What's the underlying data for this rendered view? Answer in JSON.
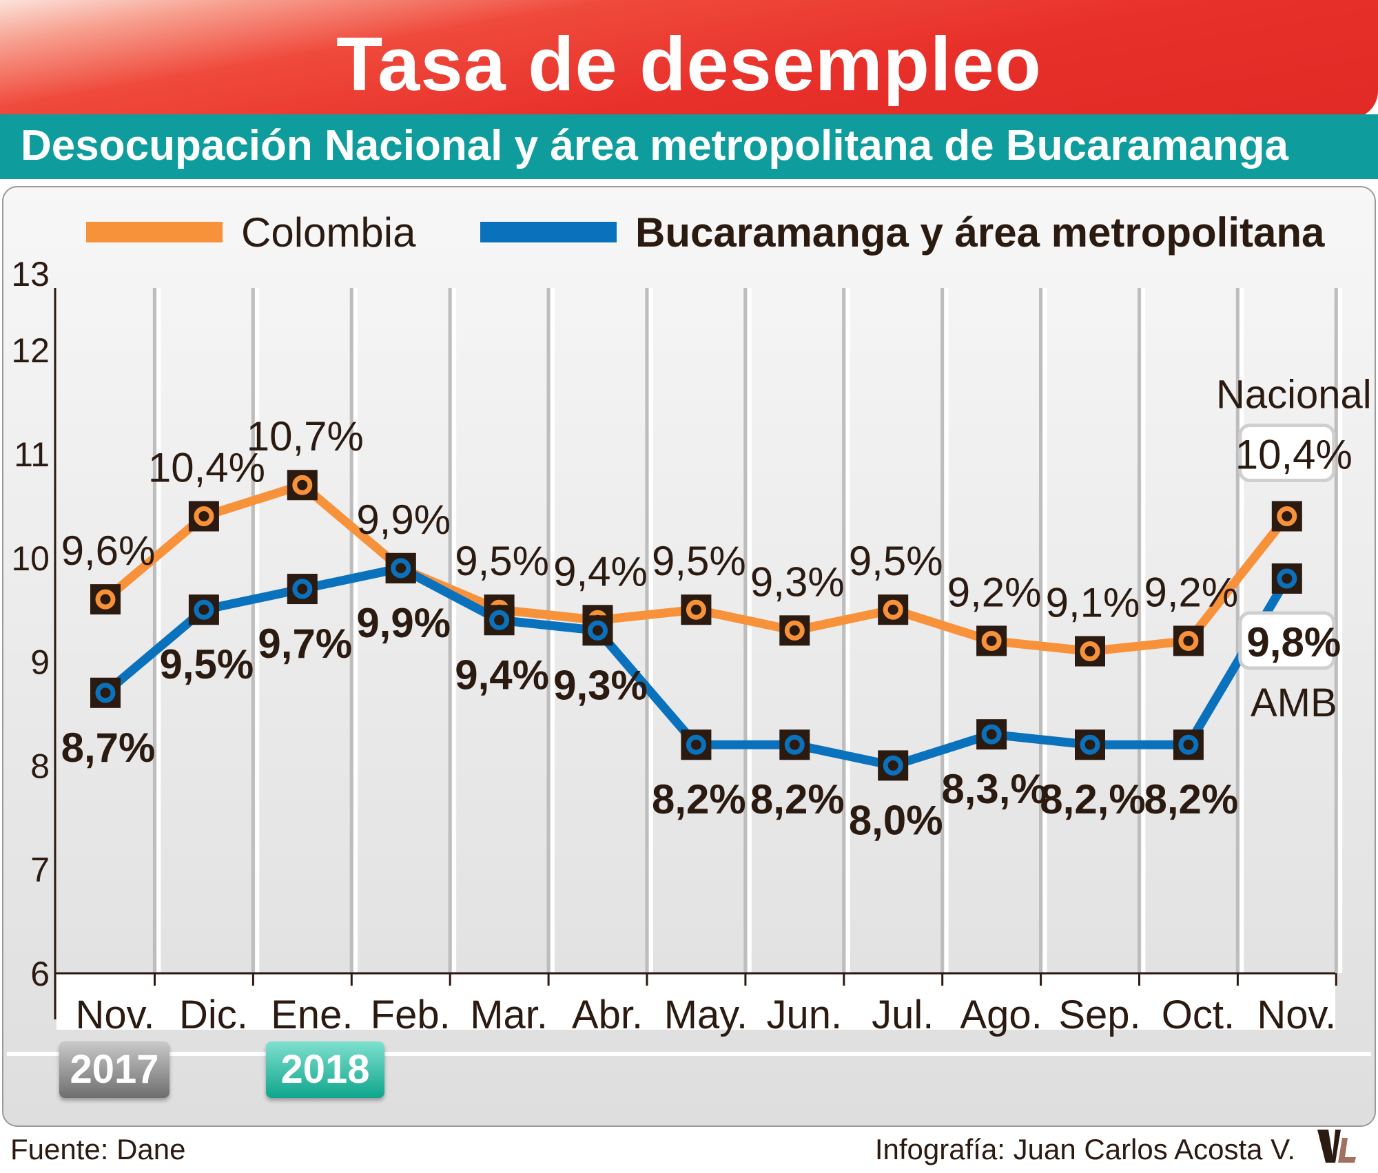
{
  "header": {
    "title": "Tasa de desempleo",
    "subtitle": "Desocupación Nacional y área metropolitana de Bucaramanga"
  },
  "chart_data": {
    "type": "line",
    "title": "Tasa de desempleo",
    "subtitle": "Desocupación Nacional y área metropolitana de Bucaramanga",
    "categories": [
      "Nov.",
      "Dic.",
      "Ene.",
      "Feb.",
      "Mar.",
      "Abr.",
      "May.",
      "Jun.",
      "Jul.",
      "Ago.",
      "Sep.",
      "Oct.",
      "Nov."
    ],
    "years": [
      "2017",
      "2018"
    ],
    "yticks": [
      6,
      7,
      8,
      9,
      10,
      11,
      12,
      13
    ],
    "ylim": [
      6,
      13
    ],
    "xlabel": "",
    "ylabel": "",
    "legend_position": "top",
    "series": [
      {
        "name": "Colombia",
        "color": "#f7923a",
        "values": [
          9.6,
          10.4,
          10.7,
          9.9,
          9.5,
          9.4,
          9.5,
          9.3,
          9.5,
          9.2,
          9.1,
          9.2,
          10.4
        ],
        "labels": [
          "9,6%",
          "10,4%",
          "10,7%",
          "9,9%",
          "9,5%",
          "9,4%",
          "9,5%",
          "9,3%",
          "9,5%",
          "9,2%",
          "9,1%",
          "9,2%",
          "10,4%"
        ],
        "end_tag": "Nacional"
      },
      {
        "name": "Bucaramanga y área metropolitana",
        "color": "#0a72bd",
        "values": [
          8.7,
          9.5,
          9.7,
          9.9,
          9.4,
          9.3,
          8.2,
          8.2,
          8.0,
          8.3,
          8.2,
          8.2,
          9.8
        ],
        "labels": [
          "8,7%",
          "9,5%",
          "9,7%",
          "9,9%",
          "9,4%",
          "9,3%",
          "8,2%",
          "8,2%",
          "8,0%",
          "8,3,%",
          "8,2,%",
          "8,2%",
          "9,8%"
        ],
        "end_tag": "AMB"
      }
    ]
  },
  "footer": {
    "source": "Fuente: Dane",
    "credit": "Infografía: Juan Carlos Acosta V."
  },
  "logo_text": "VL"
}
